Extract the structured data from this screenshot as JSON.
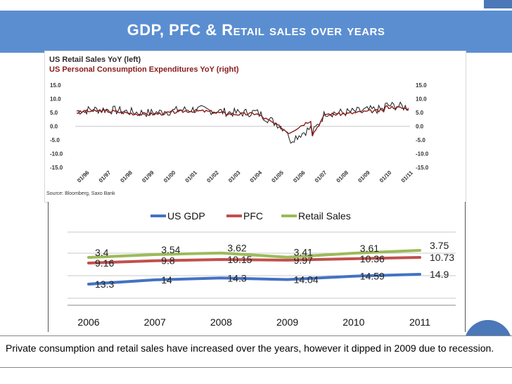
{
  "slide": {
    "title": "GDP, PFC & Retail sales over years",
    "caption": "Private consumption and retail sales have increased over the years, however it dipped in 2009 due to recession."
  },
  "photo": {
    "title_line1": "US Retail Sales YoY (left)",
    "title_line2": "US Personal Consumption Expenditures YoY (right)",
    "source": "Source: Bloomberg, Saxo Bank",
    "left_ticks": [
      "15.0",
      "10.0",
      "5.0",
      "0.0",
      "-5.0",
      "-10.0",
      "-15.0"
    ],
    "right_ticks": [
      "15.0",
      "10.0",
      "5.0",
      "0.0",
      "-5.0",
      "-10.0",
      "-15.0"
    ],
    "x_ticks": [
      "01/96",
      "01/97",
      "01/98",
      "01/99",
      "01/00",
      "01/01",
      "01/02",
      "01/03",
      "01/04",
      "01/05",
      "01/06",
      "01/07",
      "01/08",
      "01/09",
      "01/10",
      "01/11"
    ]
  },
  "chart_data": {
    "type": "line",
    "title": "",
    "xlabel": "",
    "ylabel": "",
    "legend_position": "top",
    "categories": [
      "2006",
      "2007",
      "2008",
      "2009",
      "2010",
      "2011"
    ],
    "series": [
      {
        "name": "US GDP",
        "color": "#4472c4",
        "values": [
          13.3,
          14,
          14.3,
          14.04,
          14.59,
          14.9
        ],
        "labels": [
          "13.3",
          "14",
          "14.3",
          "14.04",
          "14.59",
          "14.9"
        ]
      },
      {
        "name": "PFC",
        "color": "#c0504d",
        "values": [
          9.16,
          9.8,
          10.15,
          9.97,
          10.36,
          10.73
        ],
        "labels": [
          "9.16",
          "9.8",
          "10.15",
          "9.97",
          "10.36",
          "10.73"
        ]
      },
      {
        "name": "Retail Sales",
        "color": "#9bbb59",
        "values": [
          3.4,
          3.54,
          3.62,
          3.41,
          3.61,
          3.75
        ],
        "labels": [
          "3.4",
          "3.54",
          "3.62",
          "3.41",
          "3.61",
          "3.75"
        ]
      }
    ]
  }
}
